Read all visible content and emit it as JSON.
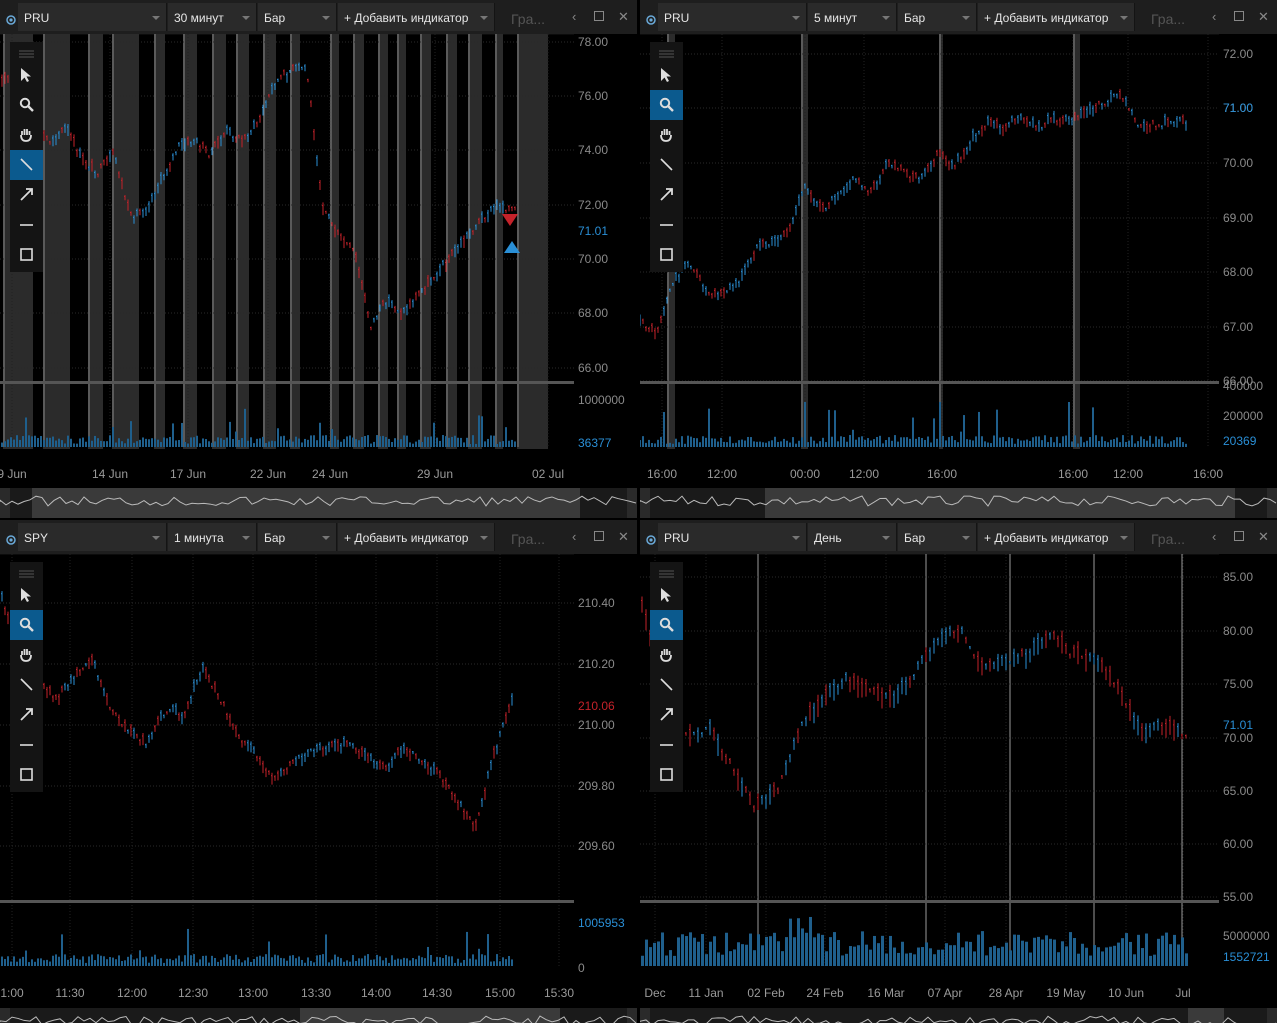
{
  "labels": {
    "add_indicator": "+ Добавить индикатор",
    "ghost": "Гра..."
  },
  "panels": [
    {
      "symbol": "PRU",
      "timeframe": "30 минут",
      "chart_type": "Бар",
      "price_ticks": [
        "78.00",
        "76.00",
        "74.00",
        "72.00",
        "70.00",
        "68.00",
        "66.00"
      ],
      "last_price": "71.01",
      "volume_ticks": [
        "1000000"
      ],
      "volume_last": "36377",
      "time_ticks": [
        "9 Jun",
        "14 Jun",
        "17 Jun",
        "22 Jun",
        "24 Jun",
        "29 Jun",
        "02 Jul"
      ]
    },
    {
      "symbol": "PRU",
      "timeframe": "5 минут",
      "chart_type": "Бар",
      "price_ticks": [
        "72.00",
        "71.00",
        "70.00",
        "69.00",
        "68.00",
        "67.00",
        "66.00"
      ],
      "last_price": "71.00",
      "volume_ticks": [
        "400000",
        "200000"
      ],
      "volume_last": "20369",
      "time_ticks": [
        "16:00",
        "12:00",
        "00:00",
        "12:00",
        "16:00",
        "16:00",
        "12:00",
        "16:00"
      ]
    },
    {
      "symbol": "SPY",
      "timeframe": "1 минута",
      "chart_type": "Бар",
      "price_ticks": [
        "210.40",
        "210.20",
        "210.00",
        "209.80",
        "209.60"
      ],
      "last_price": "210.06",
      "volume_ticks": [
        "0"
      ],
      "volume_last": "1005953",
      "time_ticks": [
        "1:00",
        "11:30",
        "12:00",
        "12:30",
        "13:00",
        "13:30",
        "14:00",
        "14:30",
        "15:00",
        "15:30"
      ]
    },
    {
      "symbol": "PRU",
      "timeframe": "День",
      "chart_type": "Бар",
      "price_ticks": [
        "85.00",
        "80.00",
        "75.00",
        "70.00",
        "65.00",
        "60.00",
        "55.00"
      ],
      "last_price": "71.01",
      "volume_ticks": [
        "5000000"
      ],
      "volume_last": "1552721",
      "time_ticks": [
        "Dec",
        "11 Jan",
        "02 Feb",
        "24 Feb",
        "16 Mar",
        "07 Apr",
        "28 Apr",
        "19 May",
        "10 Jun",
        "Jul"
      ]
    }
  ],
  "tools": [
    "select-arrow-icon",
    "zoom-icon",
    "hand-pan-icon",
    "line-icon",
    "arrow-icon",
    "hline-icon",
    "rectangle-icon"
  ],
  "colors": {
    "up": "#2a8fd6",
    "down": "#c4222a",
    "price_label": "#2a8fd6",
    "spy_price_label": "#c4222a"
  }
}
